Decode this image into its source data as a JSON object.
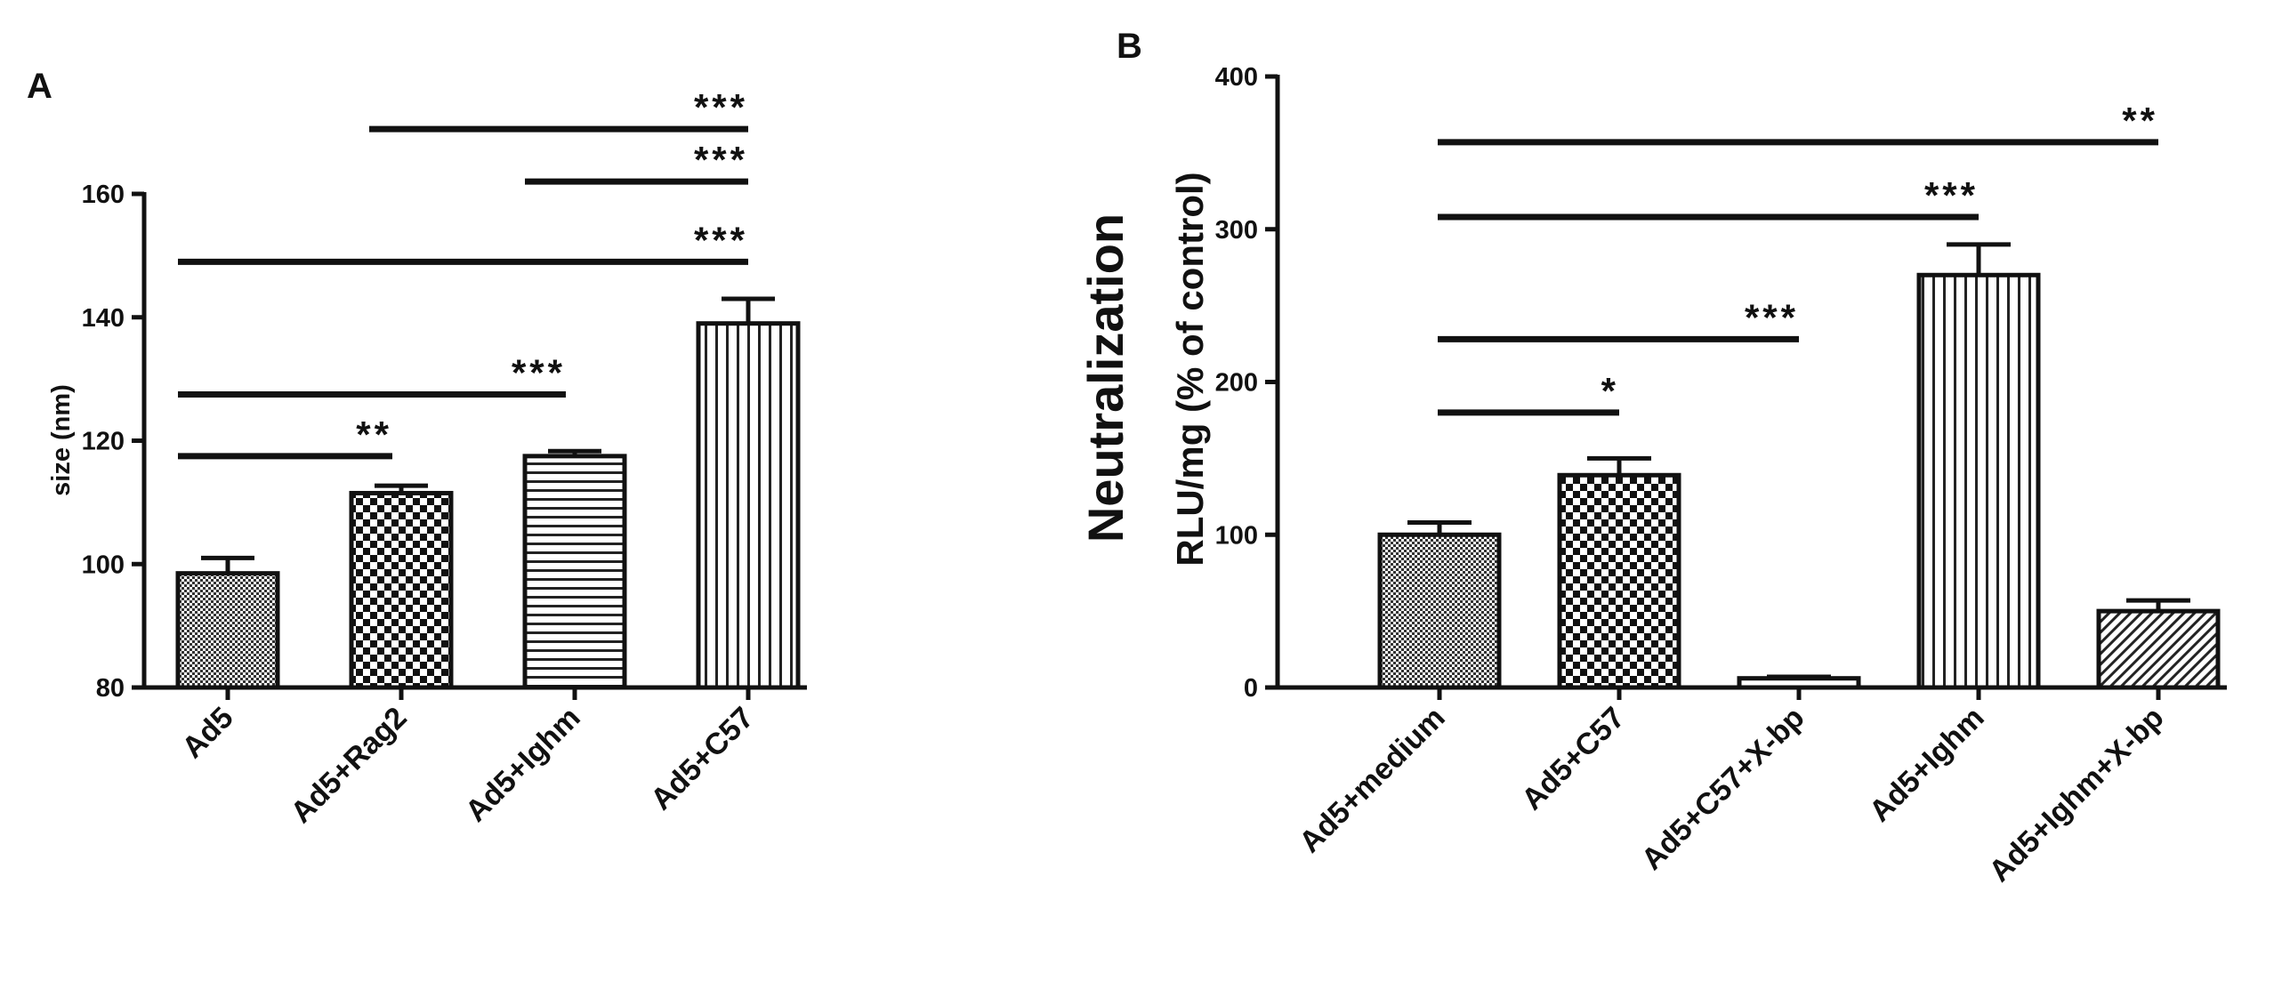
{
  "chart_data": [
    {
      "panel": "A",
      "type": "bar",
      "title": "",
      "xlabel": "",
      "ylabel": "size (nm)",
      "ylim": [
        80,
        160
      ],
      "yticks": [
        80,
        100,
        120,
        140,
        160
      ],
      "categories": [
        "Ad5",
        "Ad5+Rag2",
        "Ad5+Ighm",
        "Ad5+C57"
      ],
      "values": [
        98.5,
        111.5,
        117.5,
        139
      ],
      "errors": [
        2.5,
        1.2,
        0.8,
        4
      ],
      "patterns": [
        "pat-fine",
        "pat-check",
        "pat-hlines",
        "pat-vlines"
      ],
      "significance": [
        {
          "from": 0,
          "to": 1,
          "y": 117.5,
          "label": "**"
        },
        {
          "from": 0,
          "to": 2,
          "y": 127.5,
          "label": "***"
        },
        {
          "from": 0,
          "to": 3,
          "y": 149,
          "label": "***"
        },
        {
          "from": 2,
          "to": 3,
          "y": 162,
          "label": "***"
        },
        {
          "from": 1,
          "to": 3,
          "y": 170.5,
          "label": "***"
        }
      ]
    },
    {
      "panel": "B",
      "type": "bar",
      "title": "",
      "xlabel": "",
      "ylabel_main": "Neutralization",
      "ylabel": "RLU/mg (% of control)",
      "ylim": [
        0,
        400
      ],
      "yticks": [
        0,
        100,
        200,
        300,
        400
      ],
      "categories": [
        "Ad5+medium",
        "Ad5+C57",
        "Ad5+C57+X-bp",
        "Ad5+Ighm",
        "Ad5+Ighm+X-bp"
      ],
      "values": [
        100,
        139,
        6,
        270,
        50
      ],
      "errors": [
        8,
        11,
        1,
        20,
        7
      ],
      "patterns": [
        "pat-fine",
        "pat-check",
        "pat-none",
        "pat-vlines",
        "pat-diag"
      ],
      "significance": [
        {
          "from": 0,
          "to": 1,
          "y": 180,
          "label": "*"
        },
        {
          "from": 0,
          "to": 2,
          "y": 228,
          "label": "***"
        },
        {
          "from": 0,
          "to": 3,
          "y": 308,
          "label": "***"
        },
        {
          "from": 0,
          "to": 4,
          "y": 357,
          "label": "**"
        }
      ]
    }
  ]
}
